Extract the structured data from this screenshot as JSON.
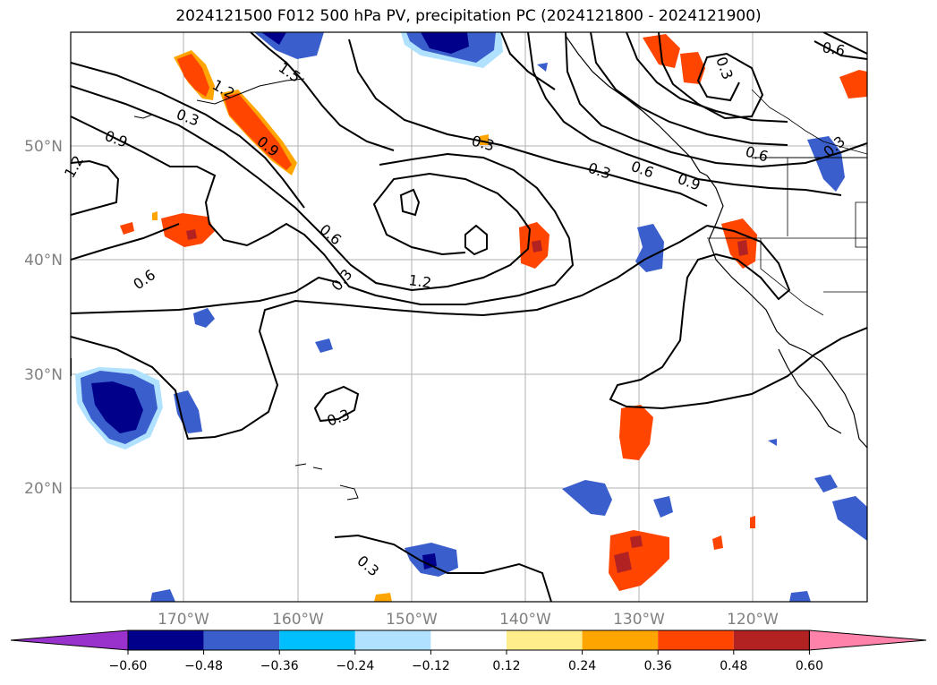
{
  "title": "2024121500 F012 500 hPa PV, precipitation PC (2024121800 - 2024121900)",
  "map": {
    "lat_labels": [
      "50°N",
      "40°N",
      "30°N",
      "20°N"
    ],
    "lon_labels": [
      "170°W",
      "160°W",
      "150°W",
      "140°W",
      "130°W",
      "120°W"
    ],
    "contour_labels": [
      "0.3",
      "0.6",
      "0.9",
      "1.2",
      "1.5"
    ]
  },
  "colorbar": {
    "ticks": [
      "−0.60",
      "−0.48",
      "−0.36",
      "−0.24",
      "−0.12",
      "0.12",
      "0.24",
      "0.36",
      "0.48",
      "0.60"
    ],
    "colors": [
      "#9932cc",
      "#00008b",
      "#3a5fcd",
      "#00bfff",
      "#b0e2ff",
      "#ffffff",
      "#ffec8b",
      "#ffa500",
      "#ff4500",
      "#b22222",
      "#ff82ab"
    ]
  }
}
